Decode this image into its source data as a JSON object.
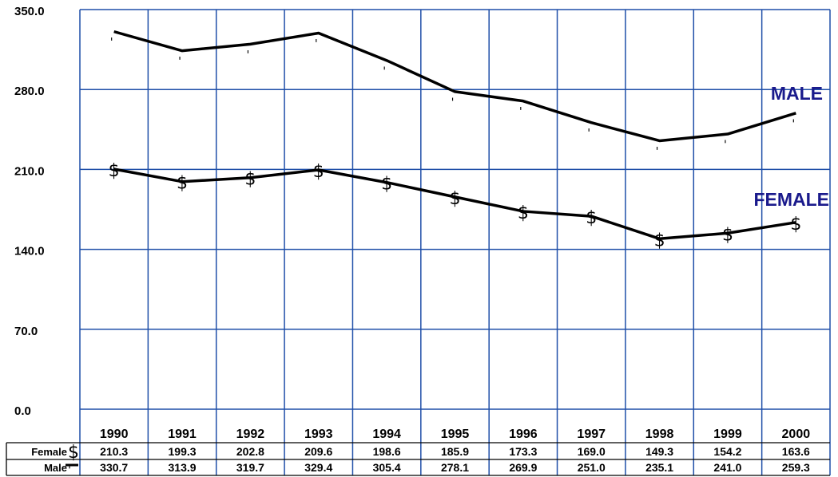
{
  "chart_data": {
    "type": "line",
    "categories": [
      "1990",
      "1991",
      "1992",
      "1993",
      "1994",
      "1995",
      "1996",
      "1997",
      "1998",
      "1999",
      "2000"
    ],
    "series": [
      {
        "name": "Female",
        "marker": "$",
        "label": "FEMALE",
        "values": [
          210.3,
          199.3,
          202.8,
          209.6,
          198.6,
          185.9,
          173.3,
          169.0,
          149.3,
          154.2,
          163.6
        ],
        "display": [
          "210.3",
          "199.3",
          "202.8",
          "209.6",
          "198.6",
          "185.9",
          "173.3",
          "169.0",
          "149.3",
          "154.2",
          "163.6"
        ]
      },
      {
        "name": "Male",
        "marker": "'",
        "label": "MALE",
        "values": [
          330.7,
          313.9,
          319.7,
          329.4,
          305.4,
          278.1,
          269.9,
          251.0,
          235.1,
          241.0,
          259.3
        ],
        "display": [
          "330.7",
          "313.9",
          "319.7",
          "329.4",
          "305.4",
          "278.1",
          "269.9",
          "251.0",
          "235.1",
          "241.0",
          "259.3"
        ]
      }
    ],
    "yticks": [
      "0.0",
      "70.0",
      "140.0",
      "210.0",
      "280.0",
      "350.0"
    ],
    "ylim": [
      0,
      350
    ],
    "grid": true,
    "line_color": "#000000",
    "grid_color": "#1f4fa8",
    "label_color": "#1a1a8c",
    "data_table": true
  }
}
